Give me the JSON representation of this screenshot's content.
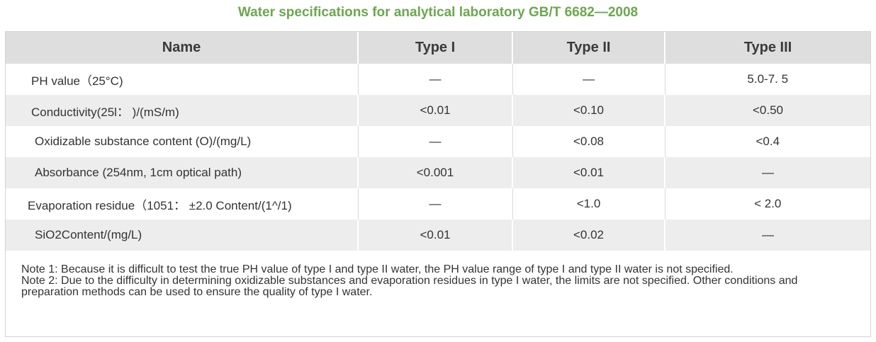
{
  "title": "Water specifications for analytical laboratory GB/T 6682—2008",
  "table": {
    "headers": [
      "Name",
      "Type I",
      "Type II",
      "Type III"
    ],
    "rows": [
      {
        "name": "PH value（25°C)",
        "type1": "—",
        "type2": "—",
        "type3": "5.0-7. 5"
      },
      {
        "name": "Conductivity(25l： )/(mS/m)",
        "type1": "<0.01",
        "type2": "<0.10",
        "type3": "<0.50"
      },
      {
        "name": "Oxidizable substance content (O)/(mg/L)",
        "type1": "—",
        "type2": "<0.08",
        "type3": "<0.4"
      },
      {
        "name": "Absorbance (254nm, 1cm optical path)",
        "type1": "<0.001",
        "type2": "<0.01",
        "type3": "—"
      },
      {
        "name": "Evaporation residue（1051： ±2.0 Content/(1^/1)",
        "type1": "—",
        "type2": "<1.0",
        "type3": "< 2.0"
      },
      {
        "name": "SiO2Content/(mg/L)",
        "type1": "<0.01",
        "type2": "<0.02",
        "type3": "—"
      }
    ]
  },
  "notes": [
    "Note 1: Because it is difficult to test the true PH value of type I and type II water, the PH value range of type I and type II water is not specified.",
    "Note 2: Due to the difficulty in determining oxidizable substances and evaporation residues in type I water, the limits are not specified. Other conditions and preparation methods can be used to ensure the quality of type I water."
  ],
  "colors": {
    "title": "#6aa84f",
    "header_bg": "#dedede",
    "stripe_bg": "#ededed",
    "text": "#333333"
  }
}
